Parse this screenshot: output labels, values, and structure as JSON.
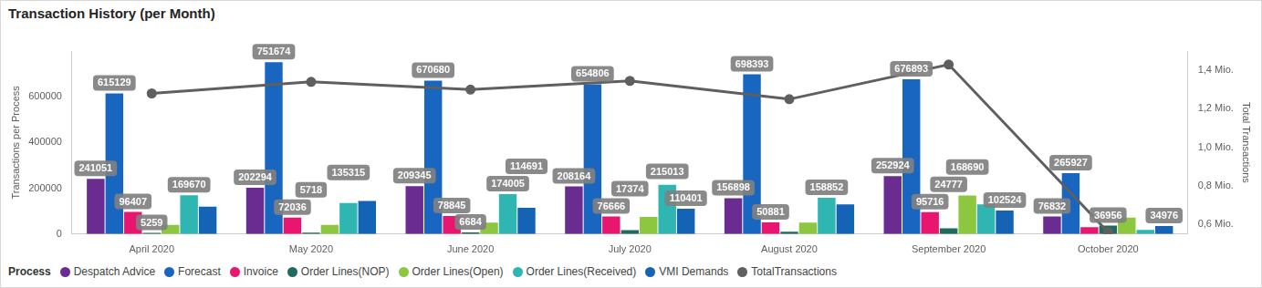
{
  "chart_data": {
    "type": "bar",
    "title": "Transaction History (per Month)",
    "y_label": "Transactions per Process",
    "y2_label": "Total Transactions",
    "legend_title": "Process",
    "legend": "bottom-left",
    "grid": false,
    "data_labels": true,
    "categories": [
      "April 2020",
      "May 2020",
      "June 2020",
      "July 2020",
      "August 2020",
      "September 2020",
      "October 2020"
    ],
    "ylim": [
      0,
      800000
    ],
    "yticks": [
      0,
      200000,
      400000,
      600000
    ],
    "y2lim": [
      550000,
      1500000
    ],
    "y2ticks": [
      {
        "value": 600000,
        "label": "0,6 Mio."
      },
      {
        "value": 800000,
        "label": "0,8 Mio."
      },
      {
        "value": 1000000,
        "label": "1,0 Mio."
      },
      {
        "value": 1200000,
        "label": "1,2 Mio."
      },
      {
        "value": 1400000,
        "label": "1,4 Mio."
      }
    ],
    "series": [
      {
        "name": "Despatch Advice",
        "color": "#6b2c91",
        "values": [
          241051,
          202294,
          209345,
          208164,
          156898,
          252924,
          76832
        ],
        "value_labels": [
          "241051",
          "202294",
          "209345",
          "208164",
          "156898",
          "252924",
          "76832"
        ]
      },
      {
        "name": "Forecast",
        "color": "#1866c0",
        "values": [
          615129,
          751674,
          670680,
          654806,
          698393,
          676893,
          265927
        ],
        "value_labels": [
          "615129",
          "751674",
          "670680",
          "654806",
          "698393",
          "676893",
          "265927"
        ]
      },
      {
        "name": "Invoice",
        "color": "#e8166e",
        "values": [
          96407,
          72036,
          78845,
          76666,
          50881,
          95716,
          30000
        ],
        "value_labels": [
          "96407",
          "72036",
          "78845",
          "76666",
          "50881",
          "95716",
          null
        ]
      },
      {
        "name": "Order Lines(NOP)",
        "color": "#1f6b5e",
        "values": [
          5259,
          5718,
          6684,
          17374,
          10000,
          24777,
          36956
        ],
        "value_labels": [
          "5259",
          "5718",
          "6684",
          "17374",
          null,
          "24777",
          "36956"
        ]
      },
      {
        "name": "Order Lines(Open)",
        "color": "#8dc63f",
        "values": [
          40000,
          40000,
          50000,
          75000,
          50000,
          168690,
          72000
        ],
        "value_labels": [
          null,
          null,
          null,
          null,
          null,
          "168690",
          null
        ]
      },
      {
        "name": "Order Lines(Received)",
        "color": "#2fb5b2",
        "values": [
          169670,
          135315,
          174005,
          215013,
          158852,
          130000,
          18000
        ],
        "value_labels": [
          "169670",
          "135315",
          "174005",
          "215013",
          "158852",
          null,
          null
        ]
      },
      {
        "name": "VMI Demands",
        "color": "#1563b5",
        "values": [
          120000,
          145000,
          114691,
          110401,
          130000,
          102524,
          34976
        ],
        "value_labels": [
          null,
          null,
          "114691",
          "110401",
          null,
          "102524",
          "34976"
        ]
      },
      {
        "name": "TotalTransactions",
        "color": "#5f5f5f",
        "type": "line",
        "axis": "y2",
        "marker": "circle",
        "values": [
          1280000,
          1340000,
          1300000,
          1345000,
          1250000,
          1430000,
          560000
        ]
      }
    ]
  }
}
